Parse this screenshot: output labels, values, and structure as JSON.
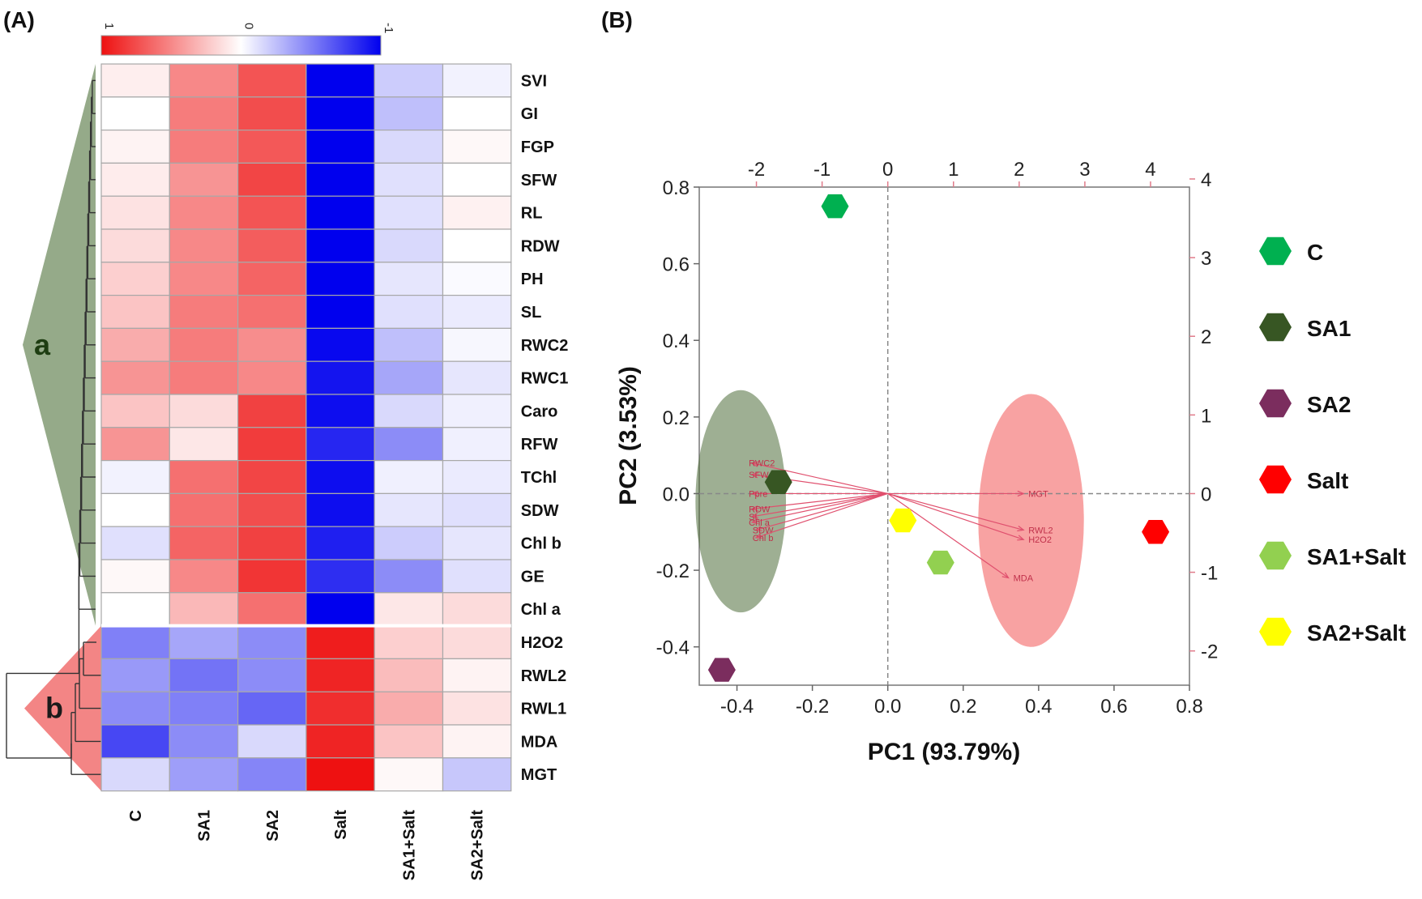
{
  "panels": {
    "a": "(A)",
    "b": "(B)"
  },
  "chart_data": [
    {
      "type": "heatmap",
      "title": "",
      "colorbar": {
        "ticks": [
          "1",
          "0",
          "-1"
        ],
        "low_color": "#0000ee",
        "mid_color": "#ffffff",
        "high_color": "#ee1111",
        "range": [
          1,
          -1
        ]
      },
      "columns": [
        "C",
        "SA1",
        "SA2",
        "Salt",
        "SA1+Salt",
        "SA2+Salt"
      ],
      "rows": [
        "SVI",
        "GI",
        "FGP",
        "SFW",
        "RL",
        "RDW",
        "PH",
        "SL",
        "RWC2",
        "RWC1",
        "Caro",
        "RFW",
        "TChl",
        "SDW",
        "Chl b",
        "GE",
        "Chl a",
        "H2O2",
        "RWL2",
        "RWL1",
        "MDA",
        "MGT"
      ],
      "values": [
        [
          0.07,
          0.5,
          0.72,
          -1.0,
          -0.2,
          -0.05
        ],
        [
          0.0,
          0.55,
          0.75,
          -1.0,
          -0.25,
          0.0
        ],
        [
          0.05,
          0.55,
          0.7,
          -1.0,
          -0.15,
          0.03
        ],
        [
          0.08,
          0.45,
          0.78,
          -1.0,
          -0.12,
          0.0
        ],
        [
          0.12,
          0.5,
          0.72,
          -1.0,
          -0.12,
          0.06
        ],
        [
          0.15,
          0.5,
          0.68,
          -1.0,
          -0.15,
          0.0
        ],
        [
          0.2,
          0.5,
          0.65,
          -1.0,
          -0.1,
          -0.02
        ],
        [
          0.25,
          0.55,
          0.6,
          -1.0,
          -0.12,
          -0.08
        ],
        [
          0.35,
          0.55,
          0.48,
          -0.97,
          -0.25,
          -0.03
        ],
        [
          0.45,
          0.55,
          0.5,
          -0.92,
          -0.35,
          -0.1
        ],
        [
          0.25,
          0.15,
          0.8,
          -0.95,
          -0.15,
          -0.06
        ],
        [
          0.45,
          0.1,
          0.82,
          -0.85,
          -0.45,
          -0.06
        ],
        [
          -0.05,
          0.6,
          0.78,
          -0.95,
          -0.06,
          -0.08
        ],
        [
          0.0,
          0.6,
          0.75,
          -0.95,
          -0.1,
          -0.12
        ],
        [
          -0.12,
          0.65,
          0.8,
          -0.88,
          -0.2,
          -0.1
        ],
        [
          0.03,
          0.5,
          0.85,
          -0.82,
          -0.45,
          -0.12
        ],
        [
          0.0,
          0.3,
          0.6,
          -1.0,
          0.1,
          0.15
        ],
        [
          -0.5,
          -0.35,
          -0.45,
          0.95,
          0.2,
          0.15
        ],
        [
          -0.4,
          -0.55,
          -0.45,
          0.92,
          0.28,
          0.05
        ],
        [
          -0.45,
          -0.5,
          -0.6,
          0.88,
          0.35,
          0.12
        ],
        [
          -0.72,
          -0.45,
          -0.15,
          0.92,
          0.25,
          0.05
        ],
        [
          -0.15,
          -0.38,
          -0.48,
          1.0,
          0.03,
          -0.22
        ]
      ],
      "row_clusters": [
        {
          "label": "a",
          "rows": [
            "SVI",
            "GI",
            "FGP",
            "SFW",
            "RL",
            "RDW",
            "PH",
            "SL",
            "RWC2",
            "RWC1",
            "Caro",
            "RFW",
            "TChl",
            "SDW",
            "Chl b",
            "GE",
            "Chl a"
          ],
          "color": "#8fa583"
        },
        {
          "label": "b",
          "rows": [
            "H2O2",
            "RWL2",
            "RWL1",
            "MDA",
            "MGT"
          ],
          "color": "#f27e7e"
        }
      ]
    },
    {
      "type": "scatter",
      "subtype": "pca-biplot",
      "xlabel": "PC1 (93.79%)",
      "ylabel": "PC2 (3.53%)",
      "xlim": [
        -0.5,
        0.8
      ],
      "ylim": [
        -0.5,
        0.8
      ],
      "x_ticks": [
        "-0.4",
        "-0.2",
        "0.0",
        "0.2",
        "0.4",
        "0.6",
        "0.8"
      ],
      "y_ticks": [
        "-0.4",
        "-0.2",
        "0.0",
        "0.2",
        "0.4",
        "0.6",
        "0.8"
      ],
      "top_ticks": [
        "-2",
        "-1",
        "0",
        "1",
        "2",
        "3",
        "4"
      ],
      "right_ticks": [
        "-2",
        "-1",
        "0",
        "1",
        "2",
        "3",
        "4"
      ],
      "points": [
        {
          "group": "C",
          "x": -0.14,
          "y": 0.75,
          "color": "#00b050"
        },
        {
          "group": "SA1",
          "x": -0.29,
          "y": 0.03,
          "color": "#375623"
        },
        {
          "group": "SA2",
          "x": -0.44,
          "y": -0.46,
          "color": "#7b2d5e"
        },
        {
          "group": "Salt",
          "x": 0.71,
          "y": -0.1,
          "color": "#ff0000"
        },
        {
          "group": "SA1+Salt",
          "x": 0.14,
          "y": -0.18,
          "color": "#92d050"
        },
        {
          "group": "SA2+Salt",
          "x": 0.04,
          "y": -0.07,
          "color": "#ffff00"
        }
      ],
      "loadings": [
        {
          "name": "RWC2",
          "x": -0.36,
          "y": 0.08
        },
        {
          "name": "SFW",
          "x": -0.36,
          "y": 0.05
        },
        {
          "name": "Ppre",
          "x": -0.36,
          "y": 0.0
        },
        {
          "name": "RDW",
          "x": -0.36,
          "y": -0.04
        },
        {
          "name": "SL",
          "x": -0.36,
          "y": -0.06
        },
        {
          "name": "Chl a",
          "x": -0.36,
          "y": -0.075
        },
        {
          "name": "SDW",
          "x": -0.35,
          "y": -0.095
        },
        {
          "name": "Chl b",
          "x": -0.35,
          "y": -0.115
        },
        {
          "name": "MGT",
          "x": 0.36,
          "y": 0.0
        },
        {
          "name": "RWL2",
          "x": 0.36,
          "y": -0.095
        },
        {
          "name": "H2O2",
          "x": 0.36,
          "y": -0.12
        },
        {
          "name": "MDA",
          "x": 0.32,
          "y": -0.22
        }
      ],
      "ellipses": [
        {
          "group": "SA1",
          "cx": -0.39,
          "cy": -0.02,
          "rx": 0.12,
          "ry": 0.29,
          "color": "#4f6e3a"
        },
        {
          "group": "Salt",
          "cx": 0.38,
          "cy": -0.07,
          "rx": 0.14,
          "ry": 0.33,
          "color": "#f25555"
        }
      ],
      "legend": [
        "C",
        "SA1",
        "SA2",
        "Salt",
        "SA1+Salt",
        "SA2+Salt"
      ],
      "legend_position": "right"
    }
  ]
}
